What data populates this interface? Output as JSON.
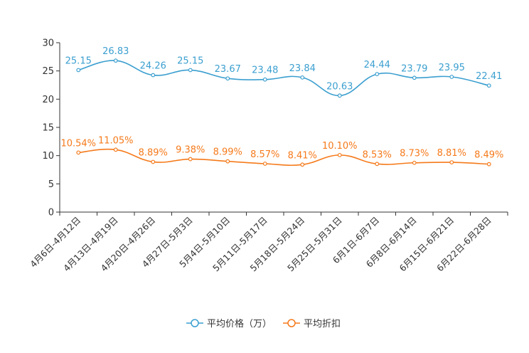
{
  "chart_data": {
    "type": "line",
    "title": "",
    "xlabel": "",
    "ylabel": "",
    "ylim": [
      0,
      30
    ],
    "yticks": [
      0,
      5,
      10,
      15,
      20,
      25,
      30
    ],
    "grid": false,
    "legend_position": "bottom-center",
    "categories": [
      "4月6日-4月12日",
      "4月13日-4月19日",
      "4月20日-4月26日",
      "4月27日-5月3日",
      "5月4日-5月10日",
      "5月11日-5月17日",
      "5月18日-5月24日",
      "5月25日-5月31日",
      "6月1日-6月7日",
      "6月8日-6月14日",
      "6月15日-6月21日",
      "6月22日-6月28日"
    ],
    "series": [
      {
        "name": "平均价格（万）",
        "color": "#3b9fd0",
        "values": [
          25.15,
          26.83,
          24.26,
          25.15,
          23.67,
          23.48,
          23.84,
          20.63,
          24.44,
          23.79,
          23.95,
          22.41
        ],
        "labels": [
          "25.15",
          "26.83",
          "24.26",
          "25.15",
          "23.67",
          "23.48",
          "23.84",
          "20.63",
          "24.44",
          "23.79",
          "23.95",
          "22.41"
        ]
      },
      {
        "name": "平均折扣",
        "color": "#f57a1b",
        "values": [
          10.54,
          11.05,
          8.89,
          9.38,
          8.99,
          8.57,
          8.41,
          10.1,
          8.53,
          8.73,
          8.81,
          8.49
        ],
        "labels": [
          "10.54%",
          "11.05%",
          "8.89%",
          "9.38%",
          "8.99%",
          "8.57%",
          "8.41%",
          "10.10%",
          "8.53%",
          "8.73%",
          "8.81%",
          "8.49%"
        ]
      }
    ]
  }
}
